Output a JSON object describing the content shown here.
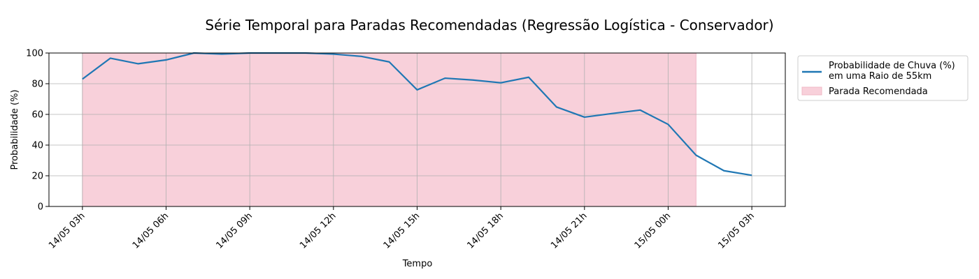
{
  "chart_data": {
    "type": "line",
    "title": "Série Temporal para Paradas Recomendadas (Regressão Logística - Conservador)",
    "xlabel": "Tempo",
    "ylabel": "Probabilidade (%)",
    "ylim": [
      0,
      100
    ],
    "xlim_hours": [
      -1.2,
      25.2
    ],
    "grid": true,
    "legend_placement": "outside-right-top",
    "x_ticks": [
      {
        "label": "14/05 03h",
        "hour": 0
      },
      {
        "label": "14/05 06h",
        "hour": 3
      },
      {
        "label": "14/05 09h",
        "hour": 6
      },
      {
        "label": "14/05 12h",
        "hour": 9
      },
      {
        "label": "14/05 15h",
        "hour": 12
      },
      {
        "label": "14/05 18h",
        "hour": 15
      },
      {
        "label": "14/05 21h",
        "hour": 18
      },
      {
        "label": "15/05 00h",
        "hour": 21
      },
      {
        "label": "15/05 03h",
        "hour": 24
      }
    ],
    "y_ticks": [
      0,
      20,
      40,
      60,
      80,
      100
    ],
    "series": [
      {
        "name": "Probabilidade de Chuva (%)\n em uma Raio de 55km",
        "color": "#1f77b4",
        "x_hours": [
          0,
          1,
          2,
          3,
          4,
          5,
          6,
          7,
          8,
          9,
          10,
          11,
          12,
          13,
          14,
          15,
          16,
          17,
          18,
          19,
          20,
          21,
          22,
          23,
          24
        ],
        "values": [
          83,
          96.6,
          93,
          95.5,
          100,
          99.3,
          100,
          100,
          100,
          99.3,
          97.8,
          94.2,
          76,
          83.6,
          82.4,
          80.6,
          84.2,
          64.8,
          58.2,
          60.6,
          62.8,
          53.5,
          33.4,
          23.3,
          20.3
        ]
      }
    ],
    "shaded_regions": [
      {
        "name": "Parada Recomendada",
        "color": "#f8d0da",
        "edge_color": "#f0b8c6",
        "x_start_hour": 0,
        "x_end_hour": 22,
        "y_range": [
          0,
          100
        ]
      }
    ]
  }
}
